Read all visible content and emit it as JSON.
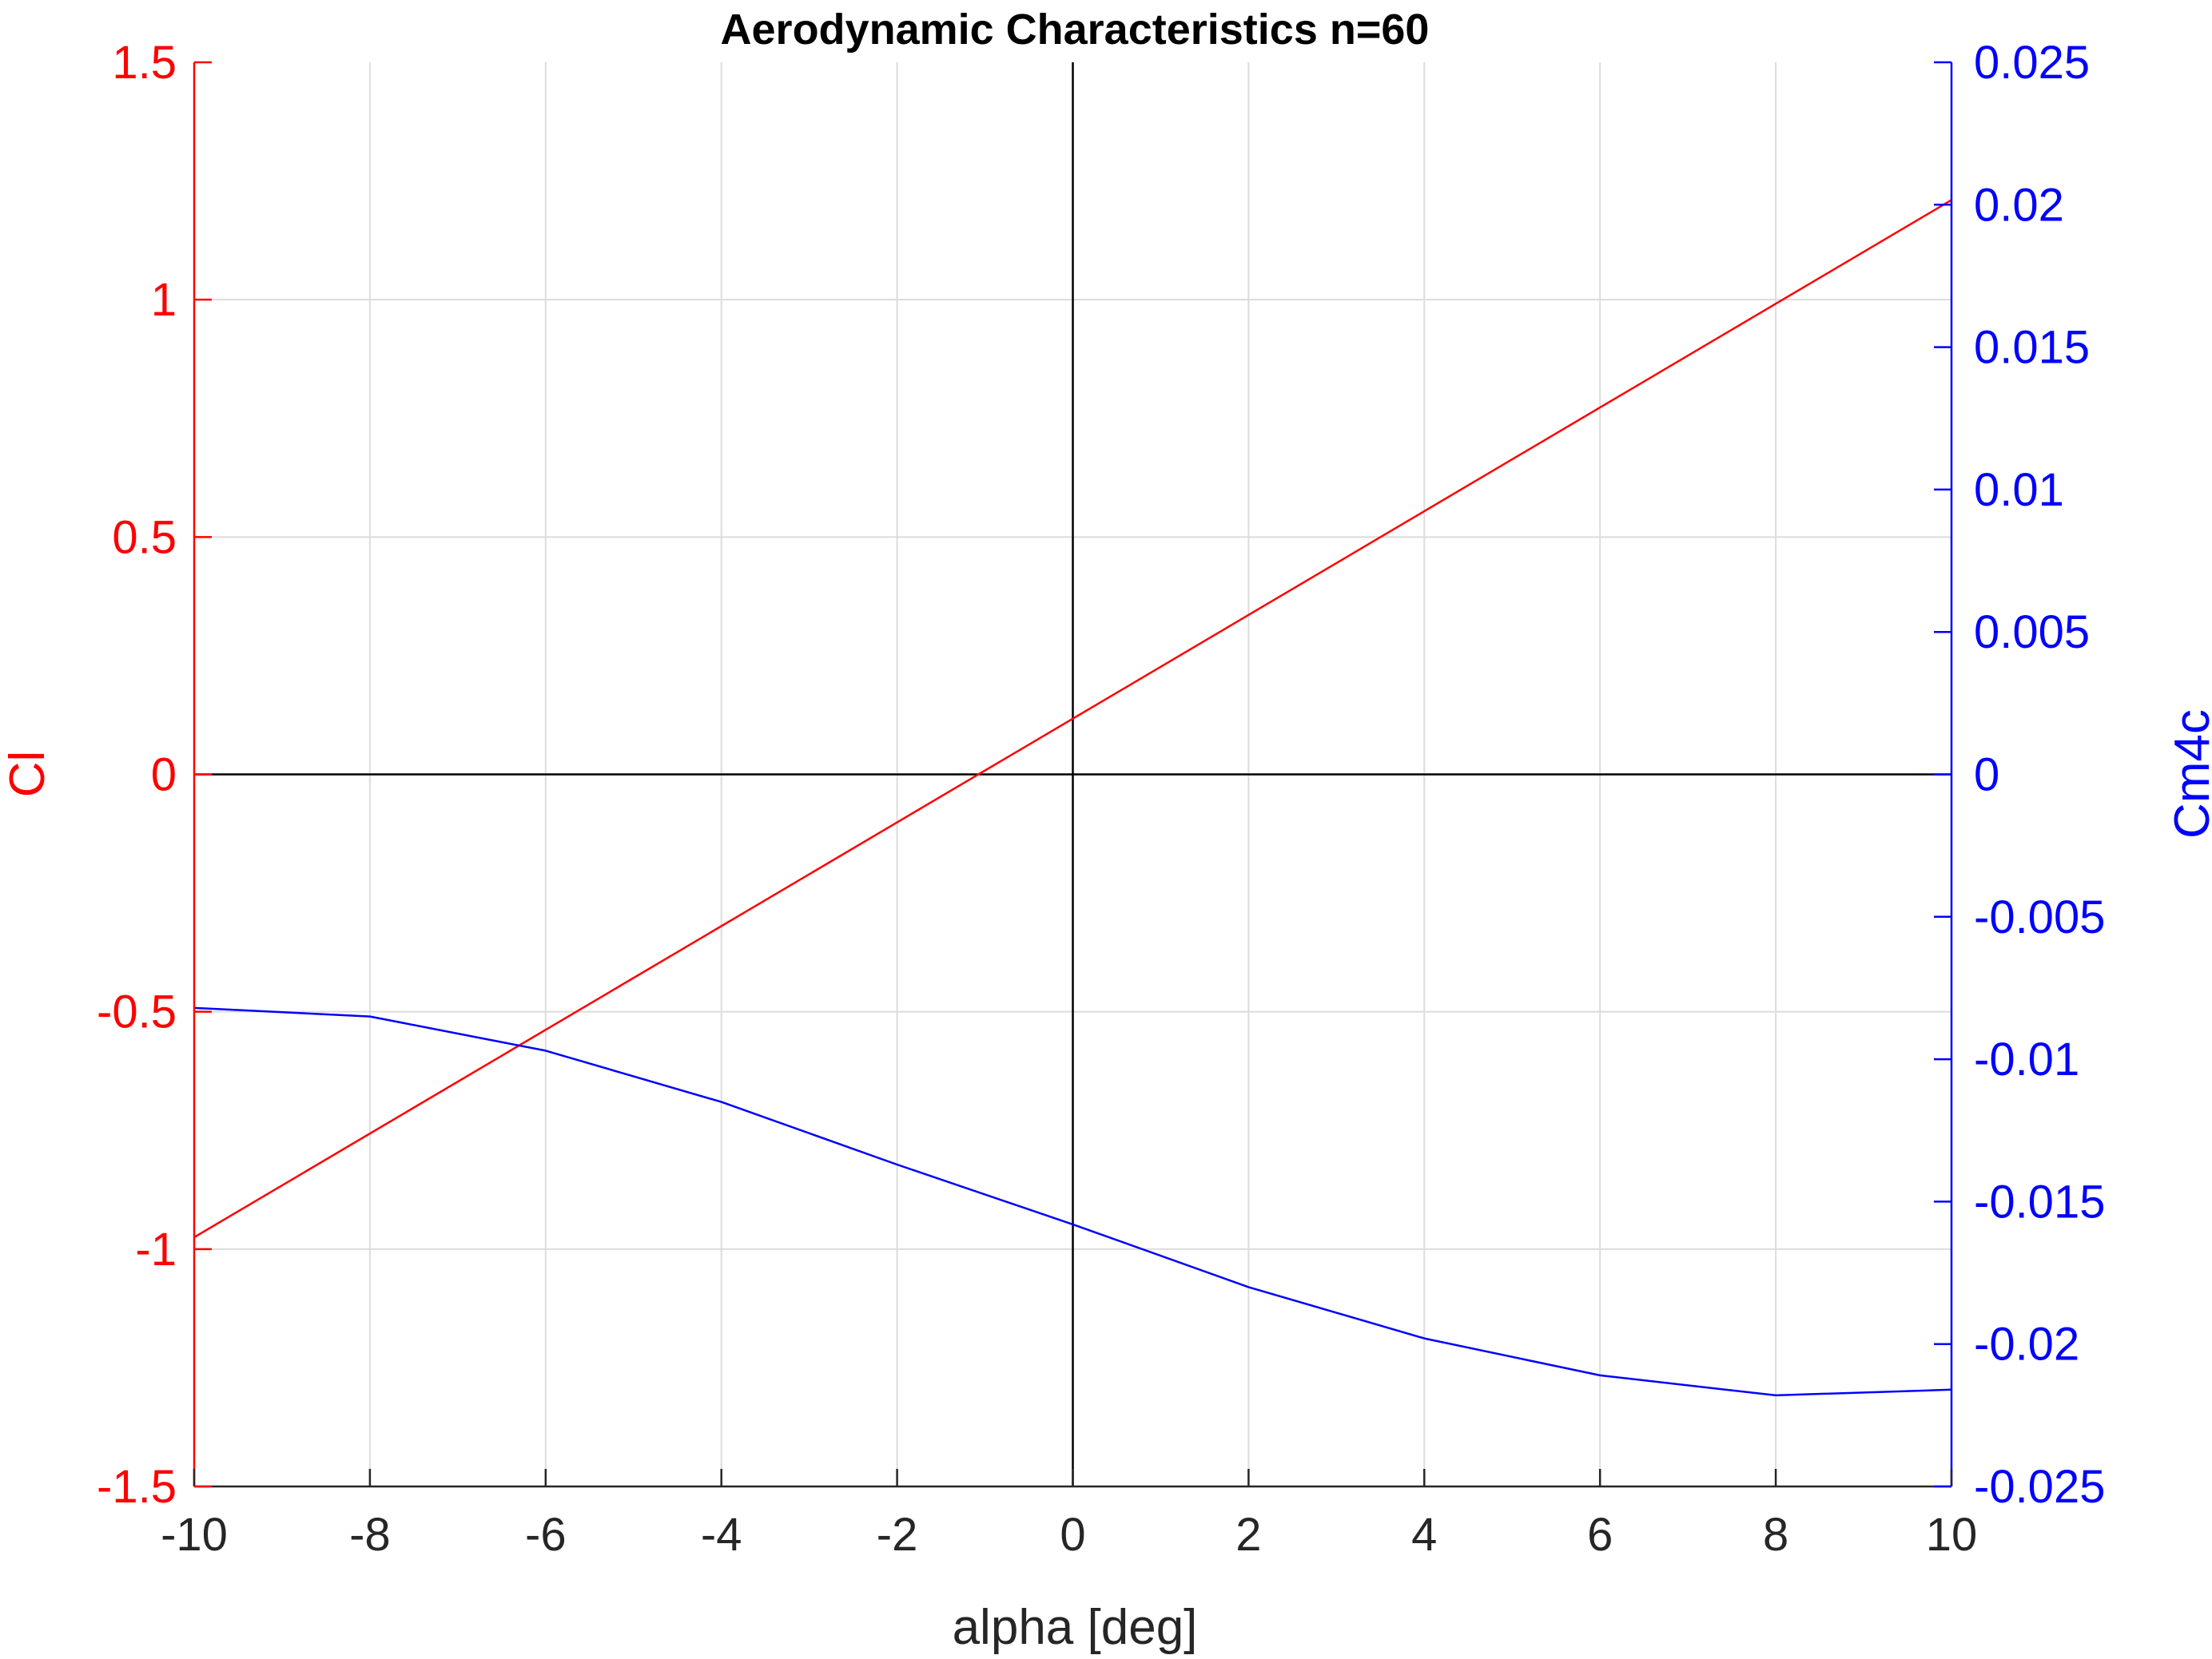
{
  "chart_data": {
    "type": "line",
    "title": "Aerodynamic Characteristics n=60",
    "xlabel": "alpha [deg]",
    "ylabel_left": "Cl",
    "ylabel_right": "Cm4c",
    "xlim": [
      -10,
      10
    ],
    "ylim_left": [
      -1.5,
      1.5
    ],
    "ylim_right": [
      -0.025,
      0.025
    ],
    "x_ticks": [
      "-10",
      "-8",
      "-6",
      "-4",
      "-2",
      "0",
      "2",
      "4",
      "6",
      "8",
      "10"
    ],
    "y_ticks_left": [
      "1.5",
      "1",
      "0.5",
      "0",
      "-0.5",
      "-1",
      "-1.5"
    ],
    "y_ticks_right": [
      "0.025",
      "0.02",
      "0.015",
      "0.01",
      "0.005",
      "0",
      "-0.005",
      "-0.01",
      "-0.015",
      "-0.02",
      "-0.025"
    ],
    "grid": true,
    "zero_lines": true,
    "series": [
      {
        "axis": "left",
        "color": "#ff0000",
        "x": [
          -10,
          10
        ],
        "y": [
          -0.975,
          1.21
        ]
      },
      {
        "axis": "right",
        "color": "#0000ff",
        "x": [
          -10,
          -8,
          -6,
          -4,
          -2,
          0,
          2,
          4,
          6,
          8,
          10
        ],
        "y": [
          -0.0082,
          -0.0085,
          -0.0097,
          -0.0115,
          -0.0137,
          -0.0158,
          -0.018,
          -0.0198,
          -0.0211,
          -0.0218,
          -0.0216
        ]
      }
    ],
    "colors": {
      "left_axis": "#ff0000",
      "right_axis": "#0000ff",
      "x_axis_text": "#262626",
      "grid": "#dcdcdc",
      "zero_line": "#000000"
    }
  }
}
